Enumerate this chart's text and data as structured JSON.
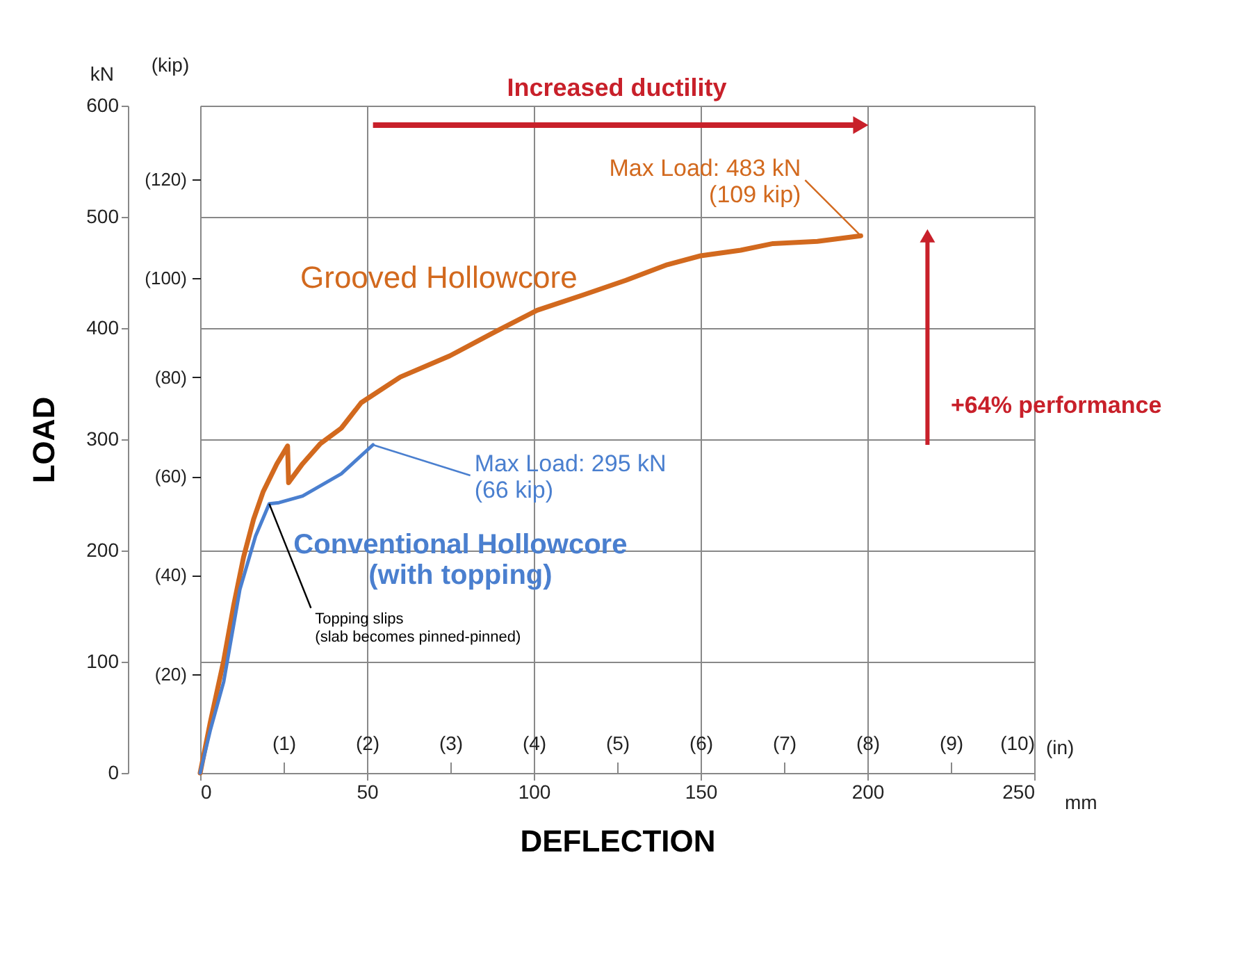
{
  "chart_data": {
    "type": "line",
    "xlabel": "DEFLECTION",
    "ylabel": "LOAD",
    "y2label": "(kip)",
    "x2label": "(in)",
    "xlim": [
      0,
      250
    ],
    "xticks": [
      0,
      50,
      100,
      150,
      200,
      250
    ],
    "ylim": [
      0,
      600
    ],
    "yticks": [
      0,
      100,
      200,
      300,
      400,
      500,
      600
    ],
    "y2lim": [
      0,
      134.9
    ],
    "y2ticks": [
      {
        "value": 20,
        "label": "(20)"
      },
      {
        "value": 40,
        "label": "(40)"
      },
      {
        "value": 60,
        "label": "(60)"
      },
      {
        "value": 80,
        "label": "(80)"
      },
      {
        "value": 100,
        "label": "(100)"
      },
      {
        "value": 120,
        "label": "(120)"
      }
    ],
    "x2lim": [
      0,
      10
    ],
    "x2ticks": [
      {
        "value": 1,
        "label": "(1)"
      },
      {
        "value": 2,
        "label": "(2)"
      },
      {
        "value": 3,
        "label": "(3)"
      },
      {
        "value": 4,
        "label": "(4)"
      },
      {
        "value": 5,
        "label": "(5)"
      },
      {
        "value": 6,
        "label": "(6)"
      },
      {
        "value": 7,
        "label": "(7)"
      },
      {
        "value": 8,
        "label": "(8)"
      },
      {
        "value": 9,
        "label": "(9)"
      },
      {
        "value": 10,
        "label": "(10)"
      }
    ],
    "grid": true,
    "marker": "none",
    "line_style": "solid",
    "series": [
      {
        "name": "Grooved Hollowcore",
        "color": "#d2691e",
        "x": [
          0,
          3,
          7.05,
          10,
          13,
          16,
          18.9,
          23,
          26.2,
          26.5,
          30.7,
          36,
          42.3,
          48.3,
          60,
          74.8,
          88,
          101,
          115,
          127.6,
          140,
          150,
          162,
          171.7,
          185,
          198
        ],
        "values": [
          0,
          45,
          101,
          150,
          194,
          228,
          253,
          278,
          294,
          261,
          278,
          296,
          310,
          333,
          356,
          375,
          396,
          416,
          430,
          443,
          457,
          465,
          470,
          476,
          478,
          483
        ]
      },
      {
        "name": "Conventional Hollowcore\n(with topping)",
        "color": "#4a7fcf",
        "x": [
          0,
          3,
          7.05,
          11.9,
          16.6,
          20.7,
          23.6,
          30.7,
          42.3,
          51.8
        ],
        "values": [
          0,
          38,
          82,
          165,
          213,
          242,
          243,
          249,
          269,
          295
        ]
      }
    ],
    "annotations": [
      "Increased ductility",
      {
        "text": "Max Load:  483 kN\n(109 kip)",
        "x": 198,
        "y": 483
      },
      {
        "text": "Max Load:   295 kN\n(66 kip)",
        "x": 51.8,
        "y": 295
      },
      {
        "text": "Topping slips\n(slab becomes pinned-pinned)",
        "x": 20.7,
        "y": 242
      },
      "+64% performance",
      "kN",
      "mm"
    ]
  }
}
